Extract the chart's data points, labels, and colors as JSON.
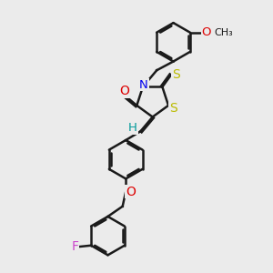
{
  "bg_color": "#ebebeb",
  "bond_color": "#1a1a1a",
  "bond_width": 1.8,
  "dbo": 0.055,
  "atom_colors": {
    "O": "#dd0000",
    "N": "#0000ee",
    "S": "#bbbb00",
    "F": "#cc44cc",
    "H": "#009999",
    "C": "#1a1a1a"
  },
  "font_size": 8.5
}
